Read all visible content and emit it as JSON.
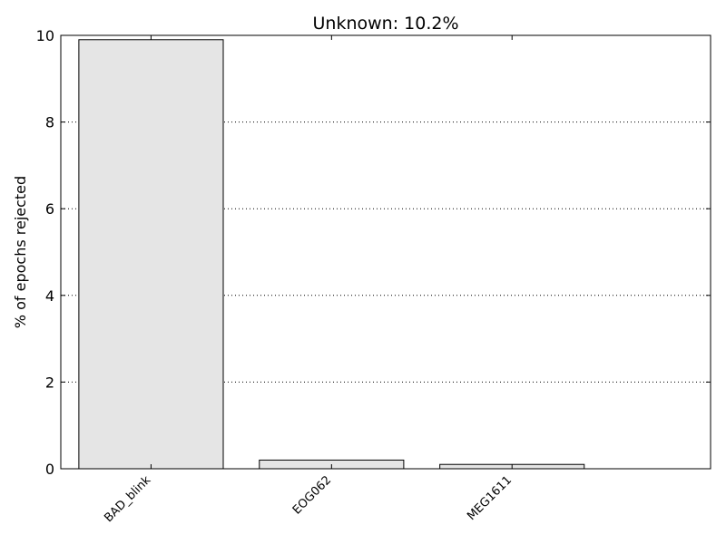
{
  "chart_data": {
    "type": "bar",
    "title": "Unknown: 10.2%",
    "xlabel": "",
    "ylabel": "% of epochs rejected",
    "categories": [
      "BAD_blink",
      "EOG062",
      "MEG1611"
    ],
    "values": [
      9.9,
      0.2,
      0.1
    ],
    "ylim": [
      0,
      10
    ],
    "yticks": [
      0,
      2,
      4,
      6,
      8,
      10
    ],
    "grid": "horizontal dotted",
    "legend": "none",
    "colors": {
      "bar_fill": "#e5e5e5",
      "bar_edge": "#000000",
      "grid": "#000000",
      "axes": "#000000"
    }
  }
}
